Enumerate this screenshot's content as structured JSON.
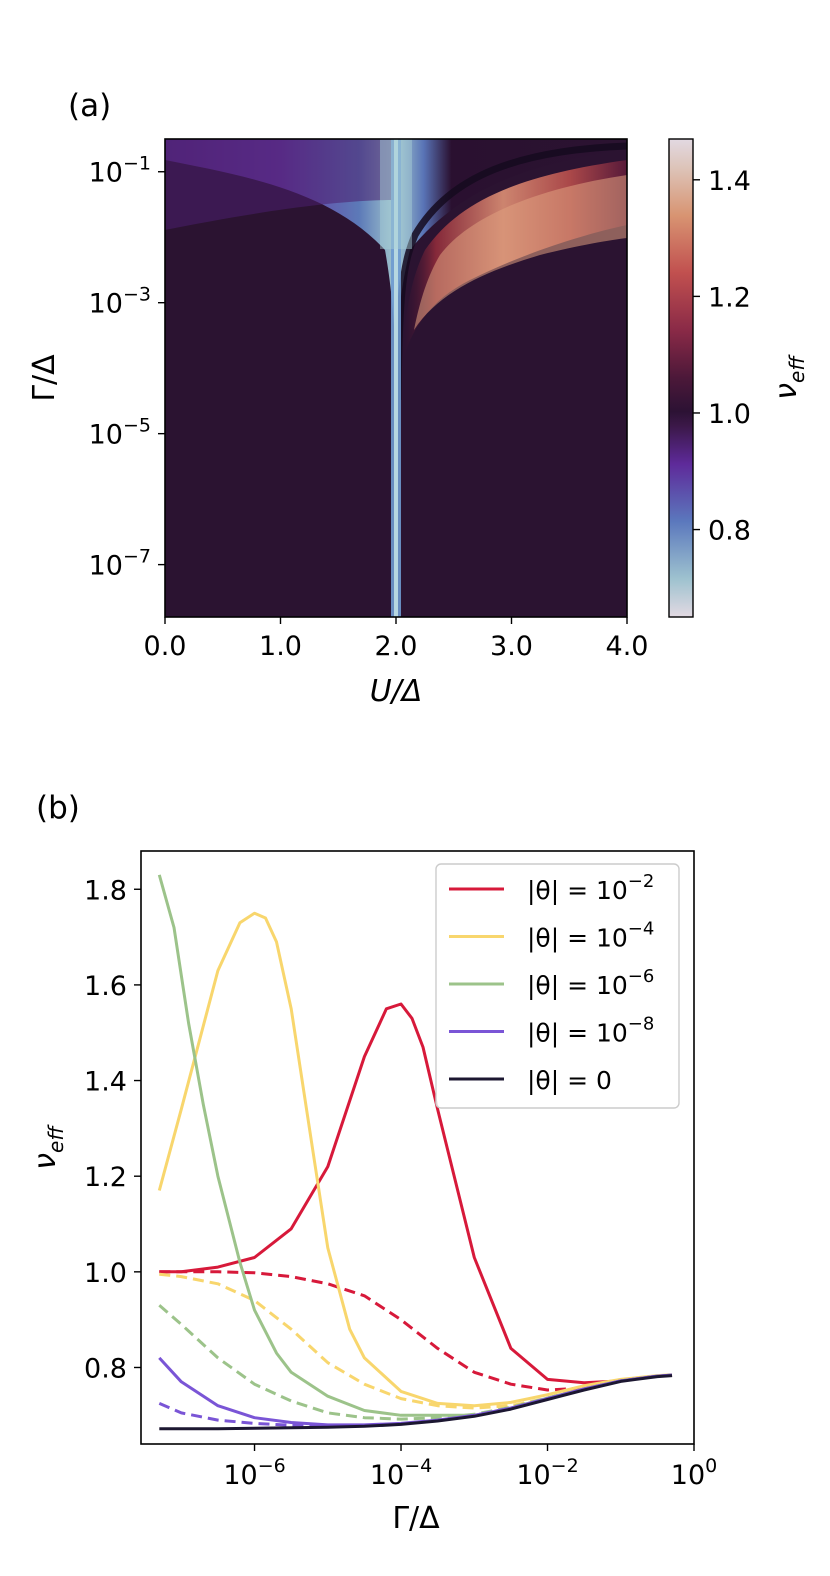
{
  "chart_data": [
    {
      "panel_label": "(a)",
      "type": "heatmap",
      "xlabel": "U/Δ",
      "ylabel": "Γ/Δ",
      "xlim": [
        0.0,
        4.0
      ],
      "ylim_log10": [
        -7.8,
        -0.5
      ],
      "y_scale": "log",
      "xticks": [
        "0.0",
        "1.0",
        "2.0",
        "3.0",
        "4.0"
      ],
      "xtick_values": [
        0,
        1,
        2,
        3,
        4
      ],
      "yticks": [
        {
          "base": "10",
          "exp": "−1",
          "value": -1
        },
        {
          "base": "10",
          "exp": "−3",
          "value": -3
        },
        {
          "base": "10",
          "exp": "−5",
          "value": -5
        },
        {
          "base": "10",
          "exp": "−7",
          "value": -7
        }
      ],
      "colorbar": {
        "label": "ν",
        "label_sub": "eff",
        "range": [
          0.65,
          1.47
        ],
        "ticks": [
          "0.8",
          "1.0",
          "1.2",
          "1.4"
        ],
        "tick_values": [
          0.8,
          1.0,
          1.2,
          1.4
        ],
        "colormap": "twilight_shifted"
      },
      "description_features": {
        "low_valley_center_U": 2.0,
        "high_ridge_side": "U > 2"
      }
    },
    {
      "panel_label": "(b)",
      "type": "line",
      "x_scale": "log",
      "xlabel": "Γ/Δ",
      "ylabel": "ν",
      "ylabel_sub": "eff",
      "xlim_log10": [
        -7.55,
        0.0
      ],
      "ylim": [
        0.64,
        1.88
      ],
      "xticks": [
        {
          "base": "10",
          "exp": "−6",
          "value": -6
        },
        {
          "base": "10",
          "exp": "−4",
          "value": -4
        },
        {
          "base": "10",
          "exp": "−2",
          "value": -2
        },
        {
          "base": "10",
          "exp": "0",
          "value": 0
        }
      ],
      "yticks": [
        "0.8",
        "1.0",
        "1.2",
        "1.4",
        "1.6",
        "1.8"
      ],
      "ytick_values": [
        0.8,
        1.0,
        1.2,
        1.4,
        1.6,
        1.8
      ],
      "legend": {
        "placement": "upper right",
        "entries": [
          {
            "prefix": "|θ| = 10",
            "exp": "−2",
            "color": "#d7193a"
          },
          {
            "prefix": "|θ| = 10",
            "exp": "−4",
            "color": "#f8d66d"
          },
          {
            "prefix": "|θ| = 10",
            "exp": "−6",
            "color": "#9cc38a"
          },
          {
            "prefix": "|θ| = 10",
            "exp": "−8",
            "color": "#7a55d6"
          },
          {
            "prefix": "|θ| = 0",
            "exp": "",
            "color": "#1c1731"
          }
        ]
      },
      "series": [
        {
          "theta": "1e-2",
          "style": "solid",
          "color": "#d7193a",
          "log10x": [
            -7.3,
            -7,
            -6.5,
            -6,
            -5.5,
            -5,
            -4.5,
            -4.2,
            -4.0,
            -3.85,
            -3.7,
            -3.5,
            -3,
            -2.5,
            -2,
            -1.5,
            -1,
            -0.5,
            -0.3
          ],
          "y": [
            1.0,
            1.0,
            1.01,
            1.03,
            1.09,
            1.22,
            1.45,
            1.55,
            1.56,
            1.53,
            1.47,
            1.34,
            1.03,
            0.84,
            0.775,
            0.768,
            0.772,
            0.782,
            0.784
          ]
        },
        {
          "theta": "1e-2",
          "style": "dashed",
          "color": "#d7193a",
          "log10x": [
            -7.3,
            -7,
            -6.5,
            -6,
            -5.5,
            -5,
            -4.5,
            -4,
            -3.5,
            -3,
            -2.5,
            -2,
            -1.5,
            -1,
            -0.5,
            -0.3
          ],
          "y": [
            1.0,
            1.0,
            1.0,
            0.998,
            0.99,
            0.975,
            0.95,
            0.9,
            0.84,
            0.79,
            0.765,
            0.753,
            0.757,
            0.772,
            0.782,
            0.784
          ]
        },
        {
          "theta": "1e-4",
          "style": "solid",
          "color": "#f8d66d",
          "log10x": [
            -7.3,
            -7,
            -6.5,
            -6.2,
            -6,
            -5.85,
            -5.7,
            -5.5,
            -5.2,
            -5,
            -4.7,
            -4.5,
            -4,
            -3.5,
            -3,
            -2.5,
            -2,
            -1.5,
            -1,
            -0.5,
            -0.3
          ],
          "y": [
            1.17,
            1.34,
            1.63,
            1.73,
            1.75,
            1.74,
            1.69,
            1.55,
            1.25,
            1.05,
            0.88,
            0.82,
            0.75,
            0.725,
            0.72,
            0.727,
            0.743,
            0.762,
            0.775,
            0.783,
            0.785
          ]
        },
        {
          "theta": "1e-4",
          "style": "dashed",
          "color": "#f8d66d",
          "log10x": [
            -7.3,
            -7,
            -6.5,
            -6,
            -5.5,
            -5,
            -4.5,
            -4,
            -3.5,
            -3,
            -2.5,
            -2,
            -1.5,
            -1,
            -0.5,
            -0.3
          ],
          "y": [
            0.995,
            0.99,
            0.975,
            0.94,
            0.88,
            0.81,
            0.765,
            0.735,
            0.72,
            0.715,
            0.72,
            0.736,
            0.758,
            0.772,
            0.782,
            0.784
          ]
        },
        {
          "theta": "1e-6",
          "style": "solid",
          "color": "#9cc38a",
          "log10x": [
            -7.3,
            -7.1,
            -6.9,
            -6.7,
            -6.5,
            -6.2,
            -6,
            -5.7,
            -5.5,
            -5,
            -4.5,
            -4,
            -3.5,
            -3,
            -2.5,
            -2,
            -1.5,
            -1,
            -0.5,
            -0.3
          ],
          "y": [
            1.83,
            1.72,
            1.52,
            1.35,
            1.2,
            1.02,
            0.92,
            0.83,
            0.79,
            0.74,
            0.71,
            0.7,
            0.7,
            0.7,
            0.715,
            0.736,
            0.755,
            0.772,
            0.782,
            0.784
          ]
        },
        {
          "theta": "1e-6",
          "style": "dashed",
          "color": "#9cc38a",
          "log10x": [
            -7.3,
            -7,
            -6.5,
            -6,
            -5.5,
            -5,
            -4.5,
            -4,
            -3.5,
            -3,
            -2.5,
            -2,
            -1.5,
            -1,
            -0.5,
            -0.3
          ],
          "y": [
            0.93,
            0.89,
            0.82,
            0.765,
            0.73,
            0.705,
            0.695,
            0.692,
            0.695,
            0.702,
            0.717,
            0.736,
            0.755,
            0.772,
            0.782,
            0.784
          ]
        },
        {
          "theta": "1e-8",
          "style": "solid",
          "color": "#7a55d6",
          "log10x": [
            -7.3,
            -7,
            -6.5,
            -6,
            -5.5,
            -5,
            -4.5,
            -4,
            -3.5,
            -3,
            -2.5,
            -2,
            -1.5,
            -1,
            -0.5,
            -0.3
          ],
          "y": [
            0.82,
            0.77,
            0.72,
            0.695,
            0.685,
            0.68,
            0.68,
            0.683,
            0.69,
            0.7,
            0.715,
            0.735,
            0.755,
            0.772,
            0.782,
            0.784
          ]
        },
        {
          "theta": "1e-8",
          "style": "dashed",
          "color": "#7a55d6",
          "log10x": [
            -7.3,
            -7,
            -6.5,
            -6,
            -5.5,
            -5,
            -4.5,
            -4,
            -3.5,
            -3,
            -2.5,
            -2,
            -1.5,
            -1,
            -0.5,
            -0.3
          ],
          "y": [
            0.725,
            0.705,
            0.69,
            0.683,
            0.679,
            0.678,
            0.679,
            0.682,
            0.689,
            0.7,
            0.715,
            0.735,
            0.755,
            0.772,
            0.782,
            0.784
          ]
        },
        {
          "theta": "0",
          "style": "solid",
          "color": "#1c1731",
          "log10x": [
            -7.3,
            -7,
            -6.5,
            -6,
            -5.5,
            -5,
            -4.5,
            -4,
            -3.5,
            -3,
            -2.5,
            -2,
            -1.5,
            -1,
            -0.5,
            -0.3
          ],
          "y": [
            0.672,
            0.672,
            0.672,
            0.673,
            0.674,
            0.675,
            0.677,
            0.681,
            0.688,
            0.698,
            0.713,
            0.733,
            0.753,
            0.771,
            0.781,
            0.783
          ]
        }
      ]
    }
  ]
}
